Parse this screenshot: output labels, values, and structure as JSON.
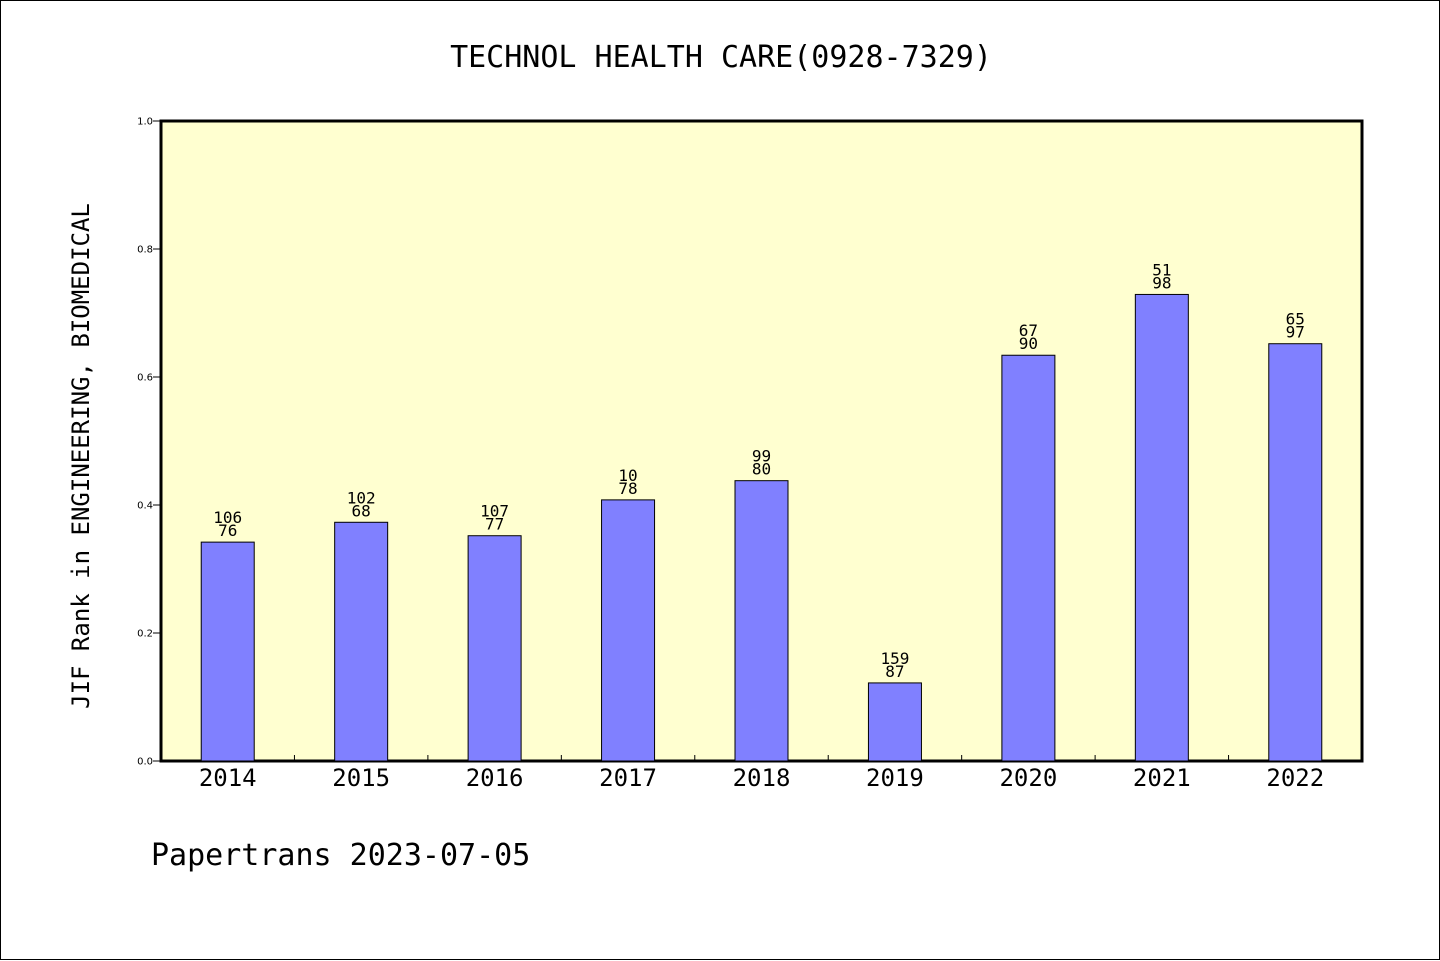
{
  "chart_data": {
    "type": "bar",
    "title": "TECHNOL HEALTH CARE(0928-7329)",
    "xlabel": "",
    "ylabel": "JIF Rank in ENGINEERING, BIOMEDICAL",
    "categories": [
      "2014",
      "2015",
      "2016",
      "2017",
      "2018",
      "2019",
      "2020",
      "2021",
      "2022"
    ],
    "values": [
      0.342,
      0.373,
      0.352,
      0.408,
      0.438,
      0.122,
      0.634,
      0.729,
      0.652
    ],
    "rank_labels": [
      "106",
      "102",
      "107",
      "10",
      "99",
      "159",
      "67",
      "51",
      "65"
    ],
    "total_labels": [
      "76",
      "68",
      "77",
      "78",
      "80",
      "87",
      "90",
      "98",
      "97"
    ],
    "ylim": [
      0,
      1.0
    ],
    "yticks": [
      "0.0",
      "0.2",
      "0.4",
      "0.6",
      "0.8",
      "1.0"
    ],
    "grid": false,
    "legend": "none",
    "colors": {
      "plot_background": "#ffffd0",
      "bar_fill": "#8080ff",
      "bar_stroke": "#000000"
    }
  },
  "footer": "Papertrans 2023-07-05"
}
